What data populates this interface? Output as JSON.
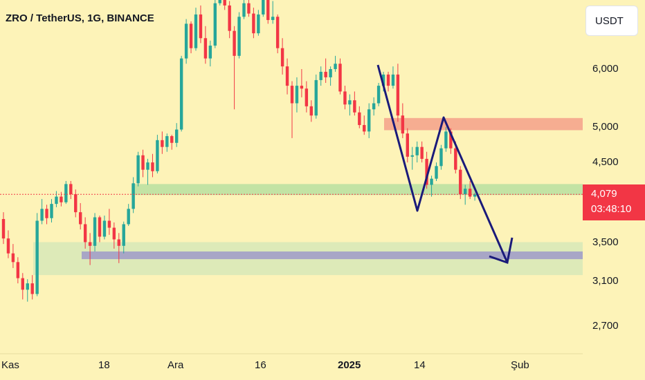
{
  "header": {
    "title": "ZRO / TetherUS, 1G, BINANCE"
  },
  "currency_button": {
    "label": "USDT"
  },
  "last_price": {
    "value": "4,079",
    "countdown": "03:48:10",
    "color": "#f23645"
  },
  "colors": {
    "up": "#26a69a",
    "down": "#f23645",
    "background": "#fdf3b8",
    "arrow": "#1a1a7a"
  },
  "chart_data": {
    "type": "candlestick",
    "title": "ZRO / TetherUS, 1G, BINANCE",
    "y_ticks": [
      "6,000",
      "5,000",
      "4,500",
      "3,500",
      "3,100",
      "2,700"
    ],
    "y_tick_values": [
      6000,
      5000,
      4500,
      3500,
      3100,
      2700
    ],
    "x_ticks": [
      "Kas",
      "18",
      "Ara",
      "16",
      "2025",
      "14",
      "Şub"
    ],
    "x_tick_index": [
      0,
      21,
      36,
      53,
      72,
      86,
      106
    ],
    "ylim": [
      2500,
      8000
    ],
    "scale": "log",
    "candles": [
      [
        3.78,
        3.86,
        3.5,
        3.56
      ],
      [
        3.56,
        3.65,
        3.35,
        3.4
      ],
      [
        3.4,
        3.5,
        3.25,
        3.31
      ],
      [
        3.31,
        3.36,
        3.1,
        3.15
      ],
      [
        3.15,
        3.2,
        2.95,
        3.04
      ],
      [
        3.04,
        3.14,
        2.93,
        3.1
      ],
      [
        3.1,
        3.18,
        2.95,
        3.0
      ],
      [
        3.0,
        3.85,
        2.98,
        3.76
      ],
      [
        3.76,
        4.02,
        3.72,
        3.9
      ],
      [
        3.9,
        3.95,
        3.72,
        3.79
      ],
      [
        3.79,
        4.02,
        3.74,
        3.96
      ],
      [
        3.96,
        4.12,
        3.92,
        4.05
      ],
      [
        4.05,
        4.11,
        3.93,
        3.98
      ],
      [
        3.98,
        4.25,
        3.96,
        4.21
      ],
      [
        4.21,
        4.25,
        4.02,
        4.08
      ],
      [
        4.08,
        4.14,
        3.8,
        3.86
      ],
      [
        3.86,
        3.97,
        3.66,
        3.72
      ],
      [
        3.72,
        3.8,
        3.45,
        3.52
      ],
      [
        3.52,
        3.62,
        3.28,
        3.48
      ],
      [
        3.48,
        3.85,
        3.42,
        3.8
      ],
      [
        3.8,
        3.82,
        3.52,
        3.58
      ],
      [
        3.58,
        3.82,
        3.55,
        3.76
      ],
      [
        3.76,
        3.9,
        3.6,
        3.68
      ],
      [
        3.68,
        3.74,
        3.45,
        3.55
      ],
      [
        3.55,
        3.62,
        3.3,
        3.48
      ],
      [
        3.48,
        3.75,
        3.4,
        3.72
      ],
      [
        3.72,
        3.96,
        3.7,
        3.9
      ],
      [
        3.9,
        4.3,
        3.85,
        4.22
      ],
      [
        4.22,
        4.65,
        4.18,
        4.6
      ],
      [
        4.6,
        4.68,
        4.3,
        4.4
      ],
      [
        4.4,
        4.55,
        4.2,
        4.5
      ],
      [
        4.5,
        4.62,
        4.3,
        4.38
      ],
      [
        4.38,
        4.9,
        4.35,
        4.82
      ],
      [
        4.82,
        4.95,
        4.62,
        4.72
      ],
      [
        4.72,
        4.92,
        4.65,
        4.88
      ],
      [
        4.88,
        4.9,
        4.68,
        4.78
      ],
      [
        4.78,
        5.08,
        4.72,
        4.98
      ],
      [
        4.98,
        6.25,
        4.95,
        6.2
      ],
      [
        6.2,
        7.0,
        6.1,
        6.9
      ],
      [
        6.9,
        6.95,
        6.3,
        6.4
      ],
      [
        6.4,
        7.25,
        6.35,
        7.1
      ],
      [
        7.1,
        7.3,
        6.5,
        6.6
      ],
      [
        6.6,
        6.85,
        6.1,
        6.2
      ],
      [
        6.2,
        6.55,
        6.05,
        6.45
      ],
      [
        6.45,
        7.5,
        6.4,
        7.35
      ],
      [
        7.35,
        8.05,
        7.3,
        7.65
      ],
      [
        7.65,
        7.7,
        7.2,
        7.3
      ],
      [
        7.3,
        7.4,
        6.6,
        6.75
      ],
      [
        6.75,
        6.85,
        5.3,
        6.25
      ],
      [
        6.25,
        7.15,
        6.2,
        7.05
      ],
      [
        7.05,
        7.8,
        7.0,
        7.35
      ],
      [
        7.35,
        7.45,
        7.05,
        7.12
      ],
      [
        7.12,
        7.25,
        6.6,
        6.7
      ],
      [
        6.7,
        7.2,
        6.65,
        7.1
      ],
      [
        7.1,
        7.9,
        7.05,
        7.72
      ],
      [
        7.72,
        7.85,
        6.9,
        6.98
      ],
      [
        6.98,
        7.4,
        6.9,
        7.05
      ],
      [
        7.05,
        7.1,
        6.3,
        6.4
      ],
      [
        6.4,
        6.6,
        5.9,
        6.05
      ],
      [
        6.05,
        6.2,
        5.55,
        5.7
      ],
      [
        5.7,
        5.78,
        4.85,
        5.4
      ],
      [
        5.4,
        5.85,
        5.25,
        5.7
      ],
      [
        5.7,
        6.0,
        5.5,
        5.65
      ],
      [
        5.65,
        5.78,
        5.25,
        5.35
      ],
      [
        5.35,
        5.45,
        5.1,
        5.2
      ],
      [
        5.2,
        5.9,
        5.15,
        5.8
      ],
      [
        5.8,
        6.05,
        5.7,
        5.95
      ],
      [
        5.95,
        6.2,
        5.75,
        5.85
      ],
      [
        5.85,
        6.05,
        5.7,
        6.0
      ],
      [
        6.0,
        6.25,
        5.95,
        6.1
      ],
      [
        6.1,
        6.2,
        5.55,
        5.6
      ],
      [
        5.6,
        5.7,
        5.3,
        5.38
      ],
      [
        5.38,
        5.55,
        5.2,
        5.45
      ],
      [
        5.45,
        5.6,
        5.2,
        5.25
      ],
      [
        5.25,
        5.35,
        5.0,
        5.05
      ],
      [
        5.05,
        5.2,
        4.9,
        4.95
      ],
      [
        4.95,
        5.4,
        4.85,
        5.3
      ],
      [
        5.3,
        5.5,
        5.2,
        5.4
      ],
      [
        5.4,
        5.75,
        5.35,
        5.7
      ],
      [
        5.7,
        5.95,
        5.6,
        5.9
      ],
      [
        5.9,
        5.95,
        5.6,
        5.7
      ],
      [
        5.7,
        6.05,
        5.65,
        5.9
      ],
      [
        5.9,
        6.1,
        5.1,
        5.2
      ],
      [
        5.2,
        5.4,
        4.85,
        4.92
      ],
      [
        4.92,
        5.0,
        4.5,
        4.58
      ],
      [
        4.58,
        4.72,
        4.4,
        4.6
      ],
      [
        4.6,
        4.8,
        4.5,
        4.72
      ],
      [
        4.72,
        4.8,
        4.5,
        4.55
      ],
      [
        4.55,
        4.65,
        4.15,
        4.2
      ],
      [
        4.2,
        4.32,
        4.05,
        4.28
      ],
      [
        4.28,
        4.5,
        4.25,
        4.45
      ],
      [
        4.45,
        4.75,
        4.4,
        4.7
      ],
      [
        4.7,
        5.02,
        4.65,
        4.95
      ],
      [
        4.95,
        5.0,
        4.62,
        4.7
      ],
      [
        4.7,
        4.8,
        4.35,
        4.4
      ],
      [
        4.4,
        4.45,
        4.02,
        4.08
      ],
      [
        4.08,
        4.2,
        3.95,
        4.15
      ],
      [
        4.15,
        4.25,
        4.02,
        4.05
      ],
      [
        4.05,
        4.1,
        4.0,
        4.079
      ]
    ],
    "zones": [
      {
        "name": "supply",
        "low": 4.97,
        "high": 5.16,
        "color": "#f5a08a"
      },
      {
        "name": "support-upper",
        "low": 4.07,
        "high": 4.21,
        "color": "#b8dfa0"
      },
      {
        "name": "support-lower",
        "low": 3.18,
        "high": 3.52,
        "color": "#c3e2b8"
      },
      {
        "name": "demand",
        "low": 3.34,
        "high": 3.42,
        "color": "#9f9ac8"
      }
    ]
  }
}
